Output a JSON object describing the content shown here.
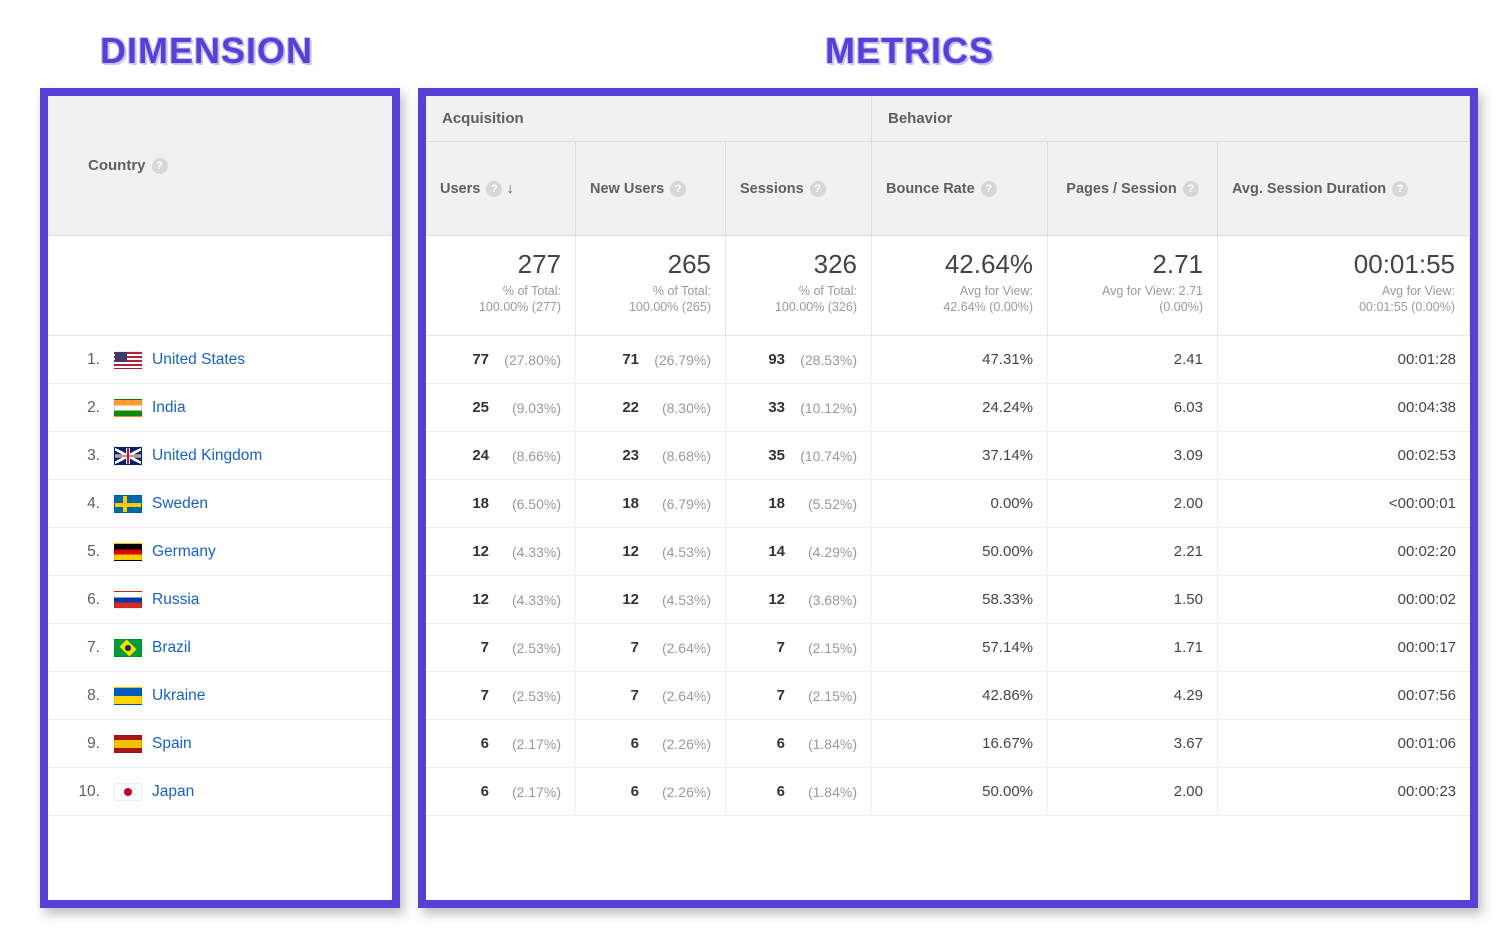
{
  "annotations": {
    "dimension": "DIMENSION",
    "metrics": "METRICS"
  },
  "colors": {
    "accent_box": "#5a3fd6",
    "link": "#1862c6",
    "header_bg": "#f1f1f1",
    "border": "#dcdcdc",
    "text": "#5f5f5f",
    "muted": "#9a9a9a"
  },
  "dimension": {
    "header": "Country"
  },
  "metric_groups": {
    "acquisition": "Acquisition",
    "behavior": "Behavior"
  },
  "metric_columns": {
    "users": "Users",
    "new_users": "New Users",
    "sessions": "Sessions",
    "bounce_rate": "Bounce Rate",
    "pages_per_session": "Pages / Session",
    "avg_session_duration": "Avg. Session Duration"
  },
  "summary": {
    "users": {
      "value": "277",
      "sub": "% of Total:\n100.00% (277)"
    },
    "new_users": {
      "value": "265",
      "sub": "% of Total:\n100.00% (265)"
    },
    "sessions": {
      "value": "326",
      "sub": "% of Total:\n100.00% (326)"
    },
    "bounce": {
      "value": "42.64%",
      "sub": "Avg for View:\n42.64% (0.00%)"
    },
    "pps": {
      "value": "2.71",
      "sub": "Avg for View: 2.71\n(0.00%)"
    },
    "dur": {
      "value": "00:01:55",
      "sub": "Avg for View:\n00:01:55 (0.00%)"
    }
  },
  "rows": [
    {
      "rank": "1.",
      "flag": "us",
      "name": "United States",
      "users": "77",
      "users_pct": "(27.80%)",
      "new": "71",
      "new_pct": "(26.79%)",
      "sess": "93",
      "sess_pct": "(28.53%)",
      "bounce": "47.31%",
      "pps": "2.41",
      "dur": "00:01:28"
    },
    {
      "rank": "2.",
      "flag": "in",
      "name": "India",
      "users": "25",
      "users_pct": "(9.03%)",
      "new": "22",
      "new_pct": "(8.30%)",
      "sess": "33",
      "sess_pct": "(10.12%)",
      "bounce": "24.24%",
      "pps": "6.03",
      "dur": "00:04:38"
    },
    {
      "rank": "3.",
      "flag": "gb",
      "name": "United Kingdom",
      "users": "24",
      "users_pct": "(8.66%)",
      "new": "23",
      "new_pct": "(8.68%)",
      "sess": "35",
      "sess_pct": "(10.74%)",
      "bounce": "37.14%",
      "pps": "3.09",
      "dur": "00:02:53"
    },
    {
      "rank": "4.",
      "flag": "se",
      "name": "Sweden",
      "users": "18",
      "users_pct": "(6.50%)",
      "new": "18",
      "new_pct": "(6.79%)",
      "sess": "18",
      "sess_pct": "(5.52%)",
      "bounce": "0.00%",
      "pps": "2.00",
      "dur": "<00:00:01"
    },
    {
      "rank": "5.",
      "flag": "de",
      "name": "Germany",
      "users": "12",
      "users_pct": "(4.33%)",
      "new": "12",
      "new_pct": "(4.53%)",
      "sess": "14",
      "sess_pct": "(4.29%)",
      "bounce": "50.00%",
      "pps": "2.21",
      "dur": "00:02:20"
    },
    {
      "rank": "6.",
      "flag": "ru",
      "name": "Russia",
      "users": "12",
      "users_pct": "(4.33%)",
      "new": "12",
      "new_pct": "(4.53%)",
      "sess": "12",
      "sess_pct": "(3.68%)",
      "bounce": "58.33%",
      "pps": "1.50",
      "dur": "00:00:02"
    },
    {
      "rank": "7.",
      "flag": "br",
      "name": "Brazil",
      "users": "7",
      "users_pct": "(2.53%)",
      "new": "7",
      "new_pct": "(2.64%)",
      "sess": "7",
      "sess_pct": "(2.15%)",
      "bounce": "57.14%",
      "pps": "1.71",
      "dur": "00:00:17"
    },
    {
      "rank": "8.",
      "flag": "ua",
      "name": "Ukraine",
      "users": "7",
      "users_pct": "(2.53%)",
      "new": "7",
      "new_pct": "(2.64%)",
      "sess": "7",
      "sess_pct": "(2.15%)",
      "bounce": "42.86%",
      "pps": "4.29",
      "dur": "00:07:56"
    },
    {
      "rank": "9.",
      "flag": "es",
      "name": "Spain",
      "users": "6",
      "users_pct": "(2.17%)",
      "new": "6",
      "new_pct": "(2.26%)",
      "sess": "6",
      "sess_pct": "(1.84%)",
      "bounce": "16.67%",
      "pps": "3.67",
      "dur": "00:01:06"
    },
    {
      "rank": "10.",
      "flag": "jp",
      "name": "Japan",
      "users": "6",
      "users_pct": "(2.17%)",
      "new": "6",
      "new_pct": "(2.26%)",
      "sess": "6",
      "sess_pct": "(1.84%)",
      "bounce": "50.00%",
      "pps": "2.00",
      "dur": "00:00:23"
    }
  ]
}
